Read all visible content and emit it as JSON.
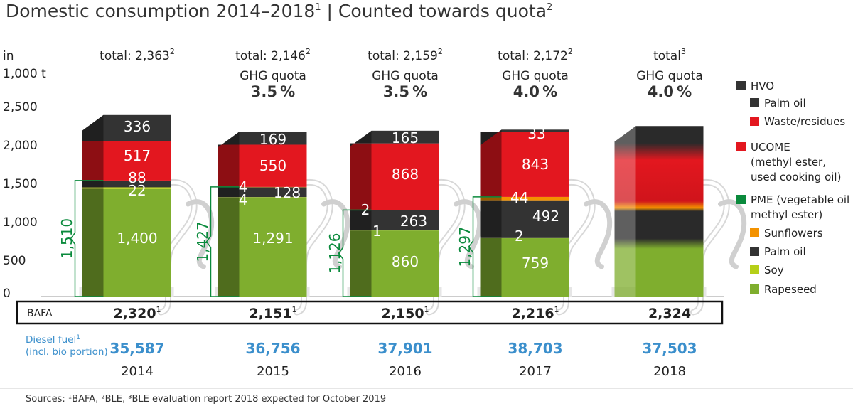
{
  "title": "Domestic consumption 2014–2018",
  "title_sup": "1",
  "title_sep": " | Counted towards quota",
  "title_sup2": "2",
  "yaxis": {
    "unit_line1": "in",
    "unit_line2": "1,000 t",
    "ticks": [
      "0",
      "500",
      "1,000",
      "1,500",
      "2,000",
      "2,500"
    ]
  },
  "gh_label": "GHG quota",
  "bafa_label": "BAFA",
  "diesel_label_line1": "Diesel fuel",
  "diesel_label_sup": "1",
  "diesel_label_line2": "(incl. bio portion)",
  "sources": "Sources: ¹BAFA, ²BLE, ³BLE evaluation report 2018 expected for October 2019",
  "colors": {
    "hvo": "#333333",
    "waste": "#e3171f",
    "ucome": "#e3171f",
    "pme_head": "#0a8a3c",
    "sunflowers": "#f39200",
    "palm": "#333333",
    "soy": "#b5cf18",
    "rapeseed": "#7fae2e",
    "blue": "#3b8fcc",
    "bracket": "#0a8a3c"
  },
  "legend": [
    {
      "key": "hvo",
      "label": "HVO",
      "color": "#333333",
      "indent": false,
      "head": true
    },
    {
      "key": "hvo_palm",
      "label": "Palm oil",
      "color": "#333333",
      "indent": true
    },
    {
      "key": "hvo_waste",
      "label": "Waste/residues",
      "color": "#e3171f",
      "indent": true
    },
    {
      "key": "ucome",
      "label": "UCOME",
      "sub1": "(methyl ester,",
      "sub2": "used cooking oil)",
      "color": "#e3171f",
      "indent": false
    },
    {
      "key": "pme",
      "label": "PME (vegetable oil",
      "sub1": "methyl ester)",
      "color": "#0a8a3c",
      "indent": false
    },
    {
      "key": "sunflowers",
      "label": "Sunflowers",
      "color": "#f39200",
      "indent": true
    },
    {
      "key": "palm",
      "label": "Palm oil",
      "color": "#333333",
      "indent": true
    },
    {
      "key": "soy",
      "label": "Soy",
      "color": "#b5cf18",
      "indent": true
    },
    {
      "key": "rapeseed",
      "label": "Rapeseed",
      "color": "#7fae2e",
      "indent": true
    }
  ],
  "chart_data": {
    "type": "bar",
    "stacked": true,
    "ylabel": "in 1,000 t",
    "ylim": [
      0,
      2500
    ],
    "categories": [
      "2014",
      "2015",
      "2016",
      "2017",
      "2018"
    ],
    "totals": [
      "total: 2,363",
      "total: 2,146",
      "total: 2,159",
      "total: 2,172",
      "total"
    ],
    "totals_sup": [
      "2",
      "2",
      "2",
      "2",
      "3"
    ],
    "ghg_quota": [
      "",
      "3.5 %",
      "3.5 %",
      "4.0 %",
      "4.0 %"
    ],
    "series": [
      {
        "name": "Rapeseed",
        "values": [
          1400,
          1291,
          860,
          759,
          null
        ],
        "labels": [
          "1,400",
          "1,291",
          "860",
          "759",
          ""
        ]
      },
      {
        "name": "Soy",
        "values": [
          22,
          4,
          1,
          2,
          null
        ],
        "labels": [
          "22",
          "4",
          "1",
          "2",
          ""
        ]
      },
      {
        "name": "Palm oil",
        "values": [
          88,
          128,
          263,
          492,
          null
        ],
        "labels": [
          "88",
          "128",
          "263",
          "492",
          ""
        ]
      },
      {
        "name": "Sunflowers",
        "values": [
          0,
          4,
          2,
          44,
          null
        ],
        "labels": [
          "",
          "4",
          "2",
          "44",
          ""
        ]
      },
      {
        "name": "UCOME",
        "values": [
          517,
          550,
          868,
          843,
          null
        ],
        "labels": [
          "517",
          "550",
          "868",
          "843",
          ""
        ]
      },
      {
        "name": "HVO",
        "values": [
          336,
          169,
          165,
          33,
          null
        ],
        "labels": [
          "336",
          "169",
          "165",
          "33",
          ""
        ]
      }
    ],
    "pme_sum": [
      "1,510",
      "1,427",
      "1,126",
      "1,297",
      ""
    ],
    "bafa": [
      "2,320",
      "2,151",
      "2,150",
      "2,216",
      "2,324"
    ],
    "bafa_sup": [
      "1",
      "1",
      "1",
      "1",
      ""
    ],
    "diesel_fuel": [
      "35,587",
      "36,756",
      "37,901",
      "38,703",
      "37,503"
    ]
  }
}
